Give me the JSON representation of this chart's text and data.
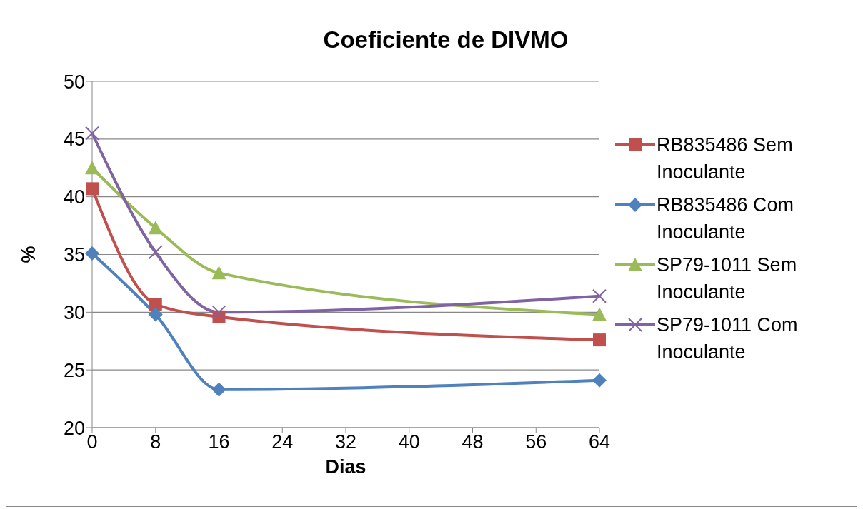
{
  "chart_data": {
    "type": "line",
    "title": "Coeficiente de DIVMO",
    "xlabel": "Dias",
    "ylabel": "%",
    "x": [
      0,
      8,
      16,
      64
    ],
    "series": [
      {
        "name": "RB835486 Sem Inoculante",
        "color": "#c0504d",
        "marker": "square",
        "values": [
          40.7,
          30.7,
          29.6,
          27.6
        ]
      },
      {
        "name": "RB835486 Com Inoculante",
        "color": "#4f81bd",
        "marker": "diamond",
        "values": [
          35.1,
          29.8,
          23.3,
          24.1
        ]
      },
      {
        "name": "SP79-1011 Sem Inoculante",
        "color": "#9bbb59",
        "marker": "triangle",
        "values": [
          42.5,
          37.3,
          33.4,
          29.8
        ]
      },
      {
        "name": "SP79-1011 Com Inoculante",
        "color": "#8064a2",
        "marker": "cross",
        "values": [
          45.5,
          35.2,
          30.0,
          31.4
        ]
      }
    ],
    "xlim": [
      0,
      64
    ],
    "xticks": [
      0,
      8,
      16,
      24,
      32,
      40,
      48,
      56,
      64
    ],
    "ylim": [
      20,
      50
    ],
    "yticks": [
      20,
      25,
      30,
      35,
      40,
      45,
      50
    ],
    "grid": "y",
    "legend": "right"
  }
}
